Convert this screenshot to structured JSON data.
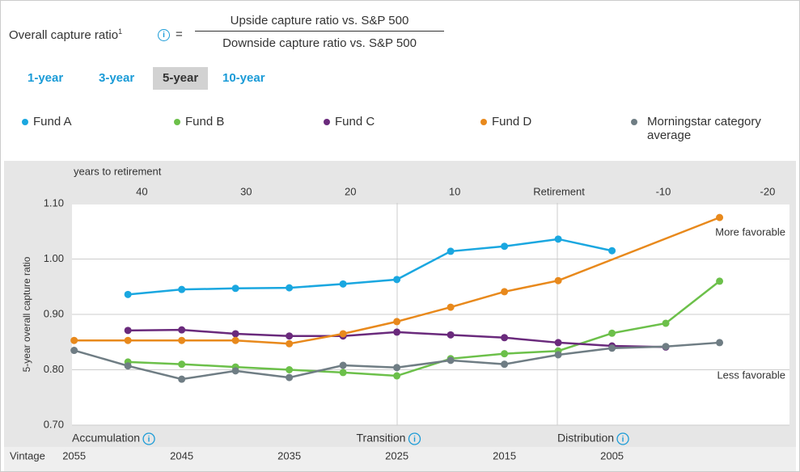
{
  "header": {
    "title": "Overall capture ratio",
    "footnote_mark": "1",
    "equals": "=",
    "numerator": "Upside capture ratio vs. S&P 500",
    "denominator": "Downside capture ratio vs. S&P 500"
  },
  "tabs": {
    "items": [
      "1-year",
      "3-year",
      "5-year",
      "10-year"
    ],
    "selected": 2
  },
  "chart_data": {
    "type": "line",
    "x_label": "years to retirement",
    "y_label": "5-year overall capture ratio",
    "vintage_label": "Vintage",
    "annotations": {
      "more": "More favorable",
      "less": "Less favorable"
    },
    "phases": [
      "Accumulation",
      "Transition",
      "Distribution"
    ],
    "xlim": [
      2055.2,
      1988.5
    ],
    "xticks": [
      2055,
      2045,
      2035,
      2025,
      2015,
      2005
    ],
    "x2lim": [
      46.7,
      -22.1
    ],
    "x2ticks": [
      40,
      30,
      20,
      10,
      {
        "value": 0,
        "label": "Retirement"
      },
      -10,
      -20
    ],
    "ylim": [
      0.7,
      1.1
    ],
    "yticks": [
      {
        "value": 0.7,
        "label": "0.70"
      },
      {
        "value": 0.8,
        "label": "0.80"
      },
      {
        "value": 0.9,
        "label": "0.90"
      },
      {
        "value": 1.0,
        "label": "1.00"
      },
      {
        "value": 1.1,
        "label": "1.10"
      }
    ],
    "grid": true,
    "series": [
      {
        "name": "Fund A",
        "color": "#1aa7e0",
        "x": [
          2050,
          2045,
          2040,
          2035,
          2030,
          2025,
          2020,
          2015,
          2010,
          2005
        ],
        "values": [
          0.936,
          0.945,
          0.947,
          0.948,
          0.955,
          0.963,
          1.014,
          1.023,
          1.036,
          1.015
        ]
      },
      {
        "name": "Fund B",
        "color": "#6cc04a",
        "x": [
          2050,
          2045,
          2040,
          2035,
          2030,
          2025,
          2020,
          2015,
          2010,
          2005,
          2000,
          1995
        ],
        "values": [
          0.814,
          0.81,
          0.805,
          0.8,
          0.795,
          0.789,
          0.82,
          0.829,
          0.834,
          0.866,
          0.884,
          0.96
        ]
      },
      {
        "name": "Fund C",
        "color": "#6a2a7c",
        "x": [
          2050,
          2045,
          2040,
          2035,
          2030,
          2025,
          2020,
          2015,
          2010,
          2005,
          2000
        ],
        "values": [
          0.871,
          0.872,
          0.865,
          0.861,
          0.861,
          0.868,
          0.863,
          0.858,
          0.849,
          0.843,
          0.841
        ]
      },
      {
        "name": "Fund D",
        "color": "#e8891c",
        "x": [
          2055,
          2050,
          2045,
          2040,
          2035,
          2030,
          2025,
          2020,
          2015,
          2010,
          1995
        ],
        "values": [
          0.853,
          0.853,
          0.853,
          0.853,
          0.847,
          0.865,
          0.887,
          0.913,
          0.941,
          0.961,
          1.075
        ]
      },
      {
        "name": "Morningstar category average",
        "color": "#6f7d84",
        "x": [
          2055,
          2050,
          2045,
          2040,
          2035,
          2030,
          2025,
          2020,
          2015,
          2010,
          2005,
          2000,
          1995
        ],
        "values": [
          0.835,
          0.807,
          0.783,
          0.798,
          0.786,
          0.808,
          0.804,
          0.817,
          0.81,
          0.827,
          0.839,
          0.842,
          0.849
        ]
      }
    ]
  }
}
